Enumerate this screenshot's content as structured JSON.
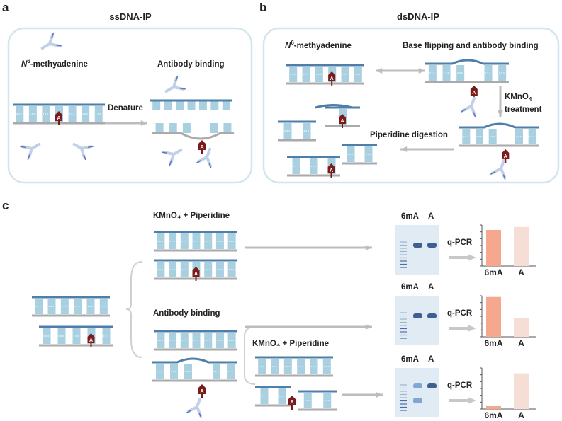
{
  "panels": {
    "a": {
      "letter": "a",
      "title": "ssDNA-IP",
      "n6_prefix": "N",
      "n6_sup": "6",
      "n6_suffix": "-methyadenine",
      "antibody_binding": "Antibody binding",
      "denature": "Denature"
    },
    "b": {
      "letter": "b",
      "title": "dsDNA-IP",
      "n6_prefix": "N",
      "n6_sup": "6",
      "n6_suffix": "-methyadenine",
      "base_flipping": "Base flipping and antibody binding",
      "kmno4": "KMnO",
      "kmno4_sub": "4",
      "treatment": "treatment",
      "piperidine": "Piperidine digestion"
    },
    "c": {
      "letter": "c",
      "kmno4_piperidine_1": "KMnO₄ + Piperidine",
      "antibody_binding": "Antibody binding",
      "kmno4_piperidine_2": "KMnO₄ + Piperidine",
      "qpcr": "q-PCR",
      "gel_lanes": [
        "6mA",
        "A"
      ]
    }
  },
  "methyl_base_label": "A",
  "colors": {
    "top_strand": "#4f7fa8",
    "bottom_strand": "#aaaaaa",
    "base": "#a9d0e0",
    "methyl": "#7a1c1c",
    "box": "#d3e6ef",
    "bar_6mA": "#f5a88e",
    "bar_A": "#f6ddd6",
    "gel": "#e1ebf3"
  },
  "chart_data": [
    {
      "type": "bar",
      "categories": [
        "6mA",
        "A"
      ],
      "values": [
        0.88,
        0.95
      ],
      "ylim": [
        0,
        1
      ],
      "title": "",
      "xlabel": "",
      "ylabel": ""
    },
    {
      "type": "bar",
      "categories": [
        "6mA",
        "A"
      ],
      "values": [
        0.97,
        0.45
      ],
      "ylim": [
        0,
        1
      ],
      "title": "",
      "xlabel": "",
      "ylabel": ""
    },
    {
      "type": "bar",
      "categories": [
        "6mA",
        "A"
      ],
      "values": [
        0.07,
        0.87
      ],
      "ylim": [
        0,
        1
      ],
      "title": "",
      "xlabel": "",
      "ylabel": ""
    }
  ]
}
